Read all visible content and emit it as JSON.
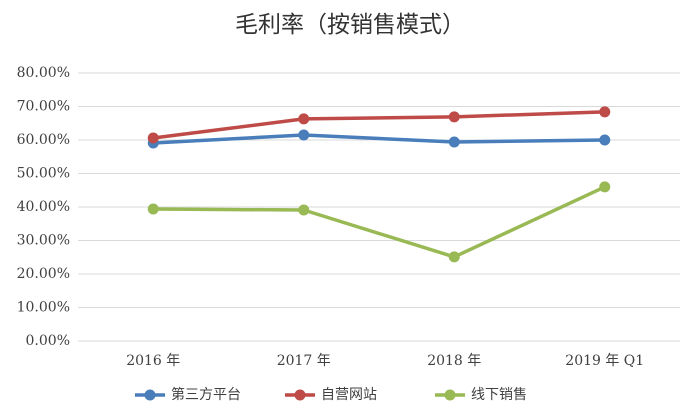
{
  "chart_data": {
    "type": "line",
    "title": "毛利率（按销售模式）",
    "categories": [
      "2016 年",
      "2017 年",
      "2018 年",
      "2019 年 Q1"
    ],
    "series": [
      {
        "name": "第三方平台",
        "color": "#4a7ebb",
        "values": [
          59.1,
          61.5,
          59.4,
          60.0
        ]
      },
      {
        "name": "自营网站",
        "color": "#be4b48",
        "values": [
          60.6,
          66.3,
          66.9,
          68.4
        ]
      },
      {
        "name": "线下销售",
        "color": "#98b954",
        "values": [
          39.4,
          39.1,
          25.1,
          46.0
        ]
      }
    ],
    "ylim": [
      0,
      80
    ],
    "yticks": [
      {
        "value": 0,
        "label": "0.00%"
      },
      {
        "value": 10,
        "label": "10.00%"
      },
      {
        "value": 20,
        "label": "20.00%"
      },
      {
        "value": 30,
        "label": "30.00%"
      },
      {
        "value": 40,
        "label": "40.00%"
      },
      {
        "value": 50,
        "label": "50.00%"
      },
      {
        "value": 60,
        "label": "60.00%"
      },
      {
        "value": 70,
        "label": "70.00%"
      },
      {
        "value": 80,
        "label": "80.00%"
      }
    ],
    "grid": true,
    "legend": "bottom"
  }
}
